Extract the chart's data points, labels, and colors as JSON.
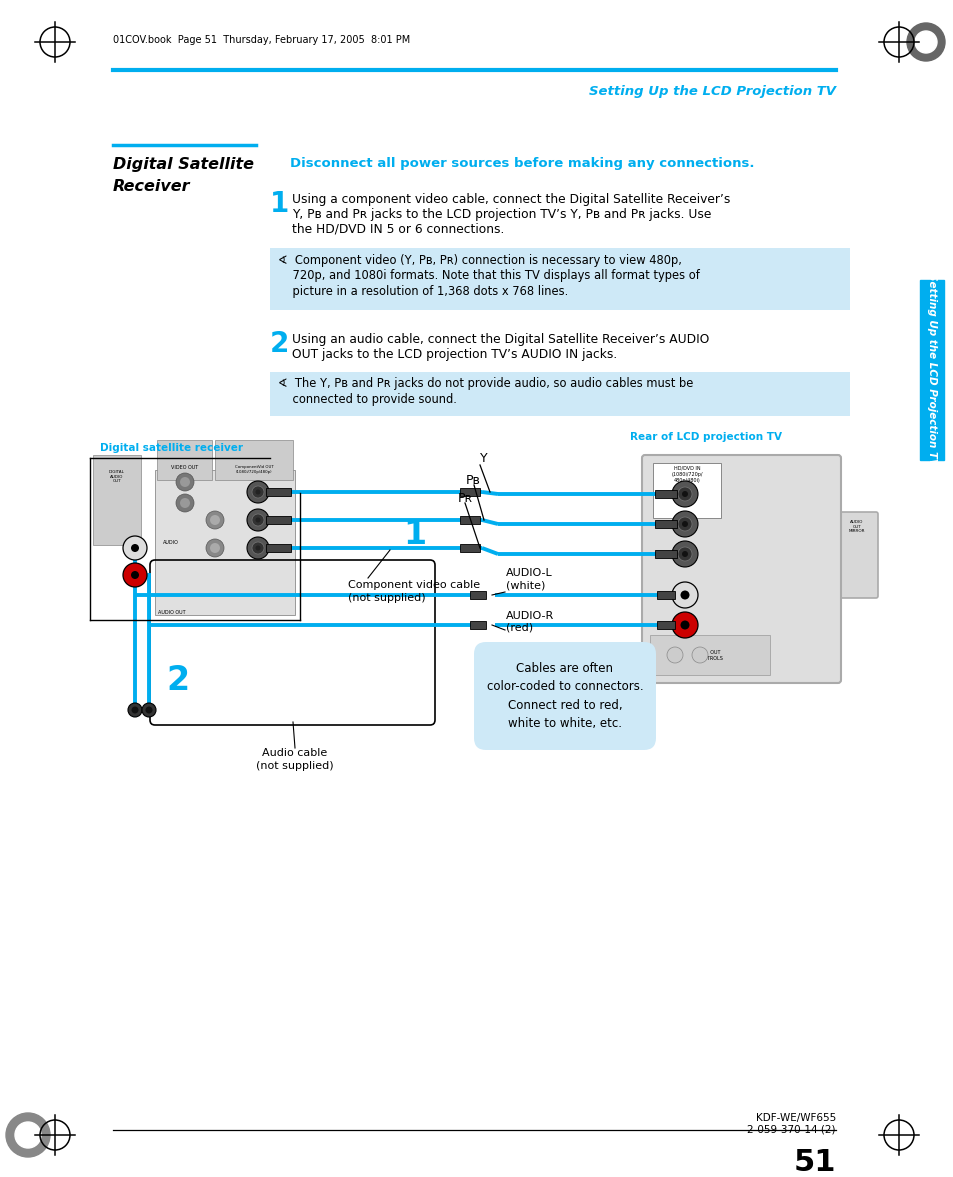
{
  "page_num": "51",
  "header_text": "Setting Up the LCD Projection TV",
  "header_file": "01COV.book  Page 51  Thursday, February 17, 2005  8:01 PM",
  "footer_model": "KDF-WE/WF655",
  "footer_part": "2-059-370-14 (2)",
  "section_title_line1": "Digital Satellite",
  "section_title_line2": "Receiver",
  "cyan_header": "Disconnect all power sources before making any connections.",
  "step1_lines": [
    "Using a component video cable, connect the Digital Satellite Receiver’s",
    "Y, Pʙ and Pʀ jacks to the LCD projection TV’s Y, Pʙ and Pʀ jacks. Use",
    "the HD/DVD IN 5 or 6 connections."
  ],
  "note1_lines": [
    "∢  Component video (Y, Pʙ, Pʀ) connection is necessary to view 480p,",
    "    720p, and 1080i formats. Note that this TV displays all format types of",
    "    picture in a resolution of 1,368 dots x 768 lines."
  ],
  "step2_lines": [
    "Using an audio cable, connect the Digital Satellite Receiver’s AUDIO",
    "OUT jacks to the LCD projection TV’s AUDIO IN jacks."
  ],
  "note2_lines": [
    "∢  The Y, Pʙ and Pʀ jacks do not provide audio, so audio cables must be",
    "    connected to provide sound."
  ],
  "diagram_label_left": "Digital satellite receiver",
  "diagram_label_right": "Rear of LCD projection TV",
  "label_Y": "Y",
  "label_PB": "Pʙ",
  "label_PR": "Pʀ",
  "label_component": "Component video cable\n(not supplied)",
  "label_audioL": "AUDIO-L\n(white)",
  "label_audioR": "AUDIO-R\n(red)",
  "label_audiocable": "Audio cable\n(not supplied)",
  "label_cables": "Cables are often\ncolor-coded to connectors.\nConnect red to red,\nwhite to white, etc.",
  "label_step1": "1",
  "label_step2": "2",
  "cyan_color": "#00AEEF",
  "light_blue_bg": "#CEE9F7",
  "sidebar_text": "Setting Up the LCD Projection TV",
  "bg_color": "#FFFFFF"
}
